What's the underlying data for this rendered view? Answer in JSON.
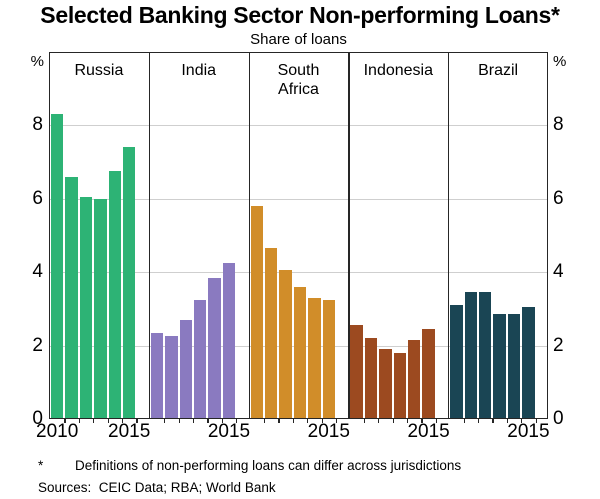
{
  "chart_data": {
    "type": "bar",
    "title": "Selected Banking Sector Non-performing Loans*",
    "subtitle": "Share of loans",
    "categories": [
      2010,
      2011,
      2012,
      2013,
      2014,
      2015
    ],
    "series": [
      {
        "name": "Russia",
        "label": "Russia",
        "color": "#2db375",
        "values": [
          8.3,
          6.6,
          6.05,
          6.0,
          6.75,
          7.4
        ]
      },
      {
        "name": "India",
        "label": "India",
        "color": "#8a7ac0",
        "values": [
          2.35,
          2.25,
          2.7,
          3.25,
          3.85,
          4.25
        ]
      },
      {
        "name": "South Africa",
        "label": "South\nAfrica",
        "color": "#d18d29",
        "values": [
          5.8,
          4.65,
          4.05,
          3.6,
          3.3,
          3.25
        ]
      },
      {
        "name": "Indonesia",
        "label": "Indonesia",
        "color": "#9c4a20",
        "values": [
          2.55,
          2.2,
          1.9,
          1.8,
          2.15,
          2.45
        ]
      },
      {
        "name": "Brazil",
        "label": "Brazil",
        "color": "#1a4554",
        "values": [
          3.1,
          3.45,
          3.45,
          2.85,
          2.85,
          3.05
        ]
      }
    ],
    "axis": {
      "unit": "%",
      "ticks": [
        0,
        2,
        4,
        6,
        8
      ],
      "gridlines": [
        2,
        4,
        6,
        8
      ],
      "ylim": [
        0,
        10
      ]
    },
    "x_axis": {
      "first_label": "2010",
      "last_label": "2015"
    },
    "layout": {
      "grid": true,
      "legend": "none",
      "panels": "side-by-side"
    }
  },
  "footnote": {
    "marker": "*",
    "text": "Definitions of non-performing loans can differ across jurisdictions"
  },
  "sources": "Sources:  CEIC Data; RBA; World Bank",
  "colors": {
    "frame": "#262626",
    "gridline": "#cfcfcf",
    "background": "#ffffff"
  }
}
